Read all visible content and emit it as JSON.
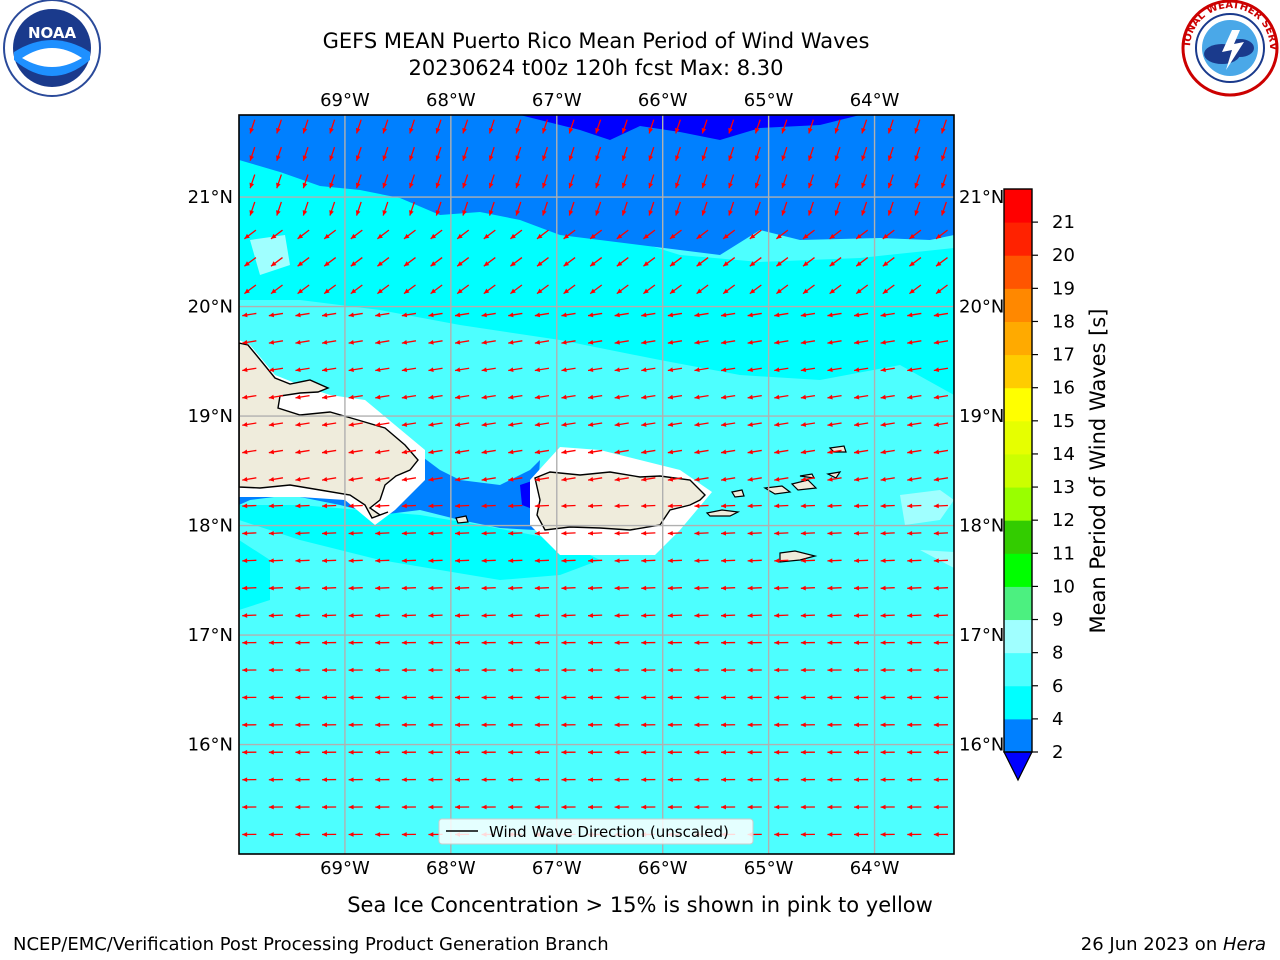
{
  "title_line1": "GEFS MEAN Puerto Rico Mean Period of Wind Waves",
  "title_line2": "20230624 t00z 120h fcst   Max: 8.30",
  "logos": {
    "left": {
      "icon": "noaa-logo",
      "text": "NOAA"
    },
    "right": {
      "icon": "national-weather-service-logo",
      "text": "NATIONAL WEATHER SERVICE"
    }
  },
  "lon_labels": [
    "69°W",
    "68°W",
    "67°W",
    "66°W",
    "65°W",
    "64°W"
  ],
  "lat_labels": [
    "21°N",
    "20°N",
    "19°N",
    "18°N",
    "17°N",
    "16°N"
  ],
  "map": {
    "lon_min": -70.0,
    "lon_max": -63.25,
    "lat_min": 15.0,
    "lat_max": 21.75,
    "ticks_lon": [
      -69,
      -68,
      -67,
      -66,
      -65,
      -64
    ],
    "ticks_lat": [
      21,
      20,
      19,
      18,
      17,
      16
    ],
    "arrow_color": "#ff0000",
    "land_color": "#efecdc",
    "coast_color": "#000000",
    "grid_color": "#b0b0b0"
  },
  "legend_label": "Wind Wave Direction (unscaled)",
  "colorbar": {
    "label": "Mean Period of Wind Waves [s]",
    "ticks": [
      "2",
      "4",
      "6",
      "8",
      "9",
      "10",
      "11",
      "12",
      "13",
      "14",
      "15",
      "16",
      "17",
      "18",
      "19",
      "20",
      "21"
    ],
    "bins": [
      {
        "from": 2,
        "to": 4,
        "color": "#0080ff"
      },
      {
        "from": 4,
        "to": 6,
        "color": "#00ffff"
      },
      {
        "from": 6,
        "to": 8,
        "color": "#4dffff"
      },
      {
        "from": 8,
        "to": 9,
        "color": "#a0ffff"
      },
      {
        "from": 9,
        "to": 10,
        "color": "#4cf080"
      },
      {
        "from": 10,
        "to": 11,
        "color": "#00ff00"
      },
      {
        "from": 11,
        "to": 12,
        "color": "#33cc00"
      },
      {
        "from": 12,
        "to": 13,
        "color": "#99ff00"
      },
      {
        "from": 13,
        "to": 14,
        "color": "#ccff00"
      },
      {
        "from": 14,
        "to": 15,
        "color": "#e6ff00"
      },
      {
        "from": 15,
        "to": 16,
        "color": "#ffff00"
      },
      {
        "from": 16,
        "to": 17,
        "color": "#ffcc00"
      },
      {
        "from": 17,
        "to": 18,
        "color": "#ffaa00"
      },
      {
        "from": 18,
        "to": 19,
        "color": "#ff8800"
      },
      {
        "from": 19,
        "to": 20,
        "color": "#ff5500"
      },
      {
        "from": 20,
        "to": 21,
        "color": "#ff2200"
      },
      {
        "from": 21,
        "to": 22,
        "color": "#ff0000"
      }
    ],
    "under_color": "#0000ff"
  },
  "sea_ice_note": "Sea Ice Concentration > 15% is shown in pink to yellow",
  "footer_left": "NCEP/EMC/Verification Post Processing Product Generation Branch",
  "footer_right_date": "26 Jun 2023 on ",
  "footer_right_host": "Hera"
}
